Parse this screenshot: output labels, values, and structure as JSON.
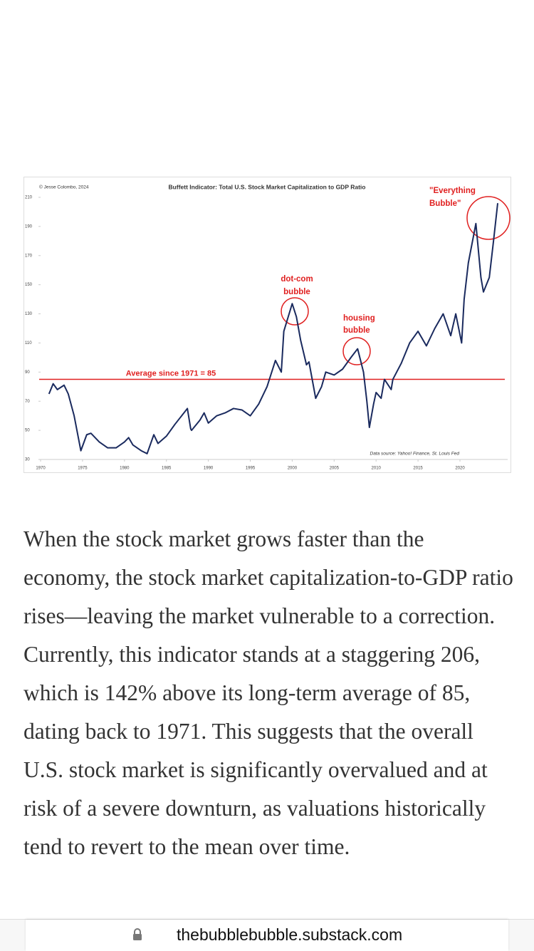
{
  "chart_data": {
    "type": "line",
    "title": "Buffett Indicator: Total U.S. Stock Market Capitalization to GDP Ratio",
    "credit": "© Jesse Colombo, 2024",
    "source": "Data source: Yahoo! Finance, St. Louis Fed",
    "average": {
      "value": 85,
      "label": "Average since 1971 = 85",
      "color": "#e02020"
    },
    "annotations": {
      "dotcom": [
        "dot-com",
        "bubble"
      ],
      "housing": [
        "housing",
        "bubble"
      ],
      "everything": [
        "\"Everything",
        "Bubble\""
      ]
    },
    "xlim": [
      1970,
      2024.8
    ],
    "ylim": [
      30,
      210
    ],
    "xticks": [
      1970,
      1975,
      1980,
      1985,
      1990,
      1995,
      2000,
      2005,
      2010,
      2015,
      2020
    ],
    "yticks": [
      30,
      50,
      70,
      90,
      110,
      130,
      150,
      170,
      190,
      210
    ],
    "series": [
      {
        "color": "#1a2a5e",
        "x": [
          1971,
          1971.5,
          1972,
          1972.8,
          1973.3,
          1974,
          1974.5,
          1974.8,
          1975.5,
          1976,
          1977,
          1978,
          1979,
          1980,
          1980.5,
          1981,
          1982,
          1982.7,
          1983.5,
          1984,
          1985,
          1986,
          1987.5,
          1987.9,
          1988,
          1989,
          1989.5,
          1990,
          1991,
          1992,
          1993,
          1994,
          1995,
          1996,
          1997,
          1998,
          1998.7,
          1999,
          2000,
          2000.5,
          2001,
          2001.7,
          2002,
          2002.8,
          2003.5,
          2004,
          2005,
          2006,
          2007,
          2007.8,
          2008.5,
          2008.9,
          2009.2,
          2009.7,
          2010,
          2010.6,
          2011,
          2011.8,
          2012,
          2013,
          2014,
          2015,
          2016,
          2017,
          2018,
          2018.9,
          2019.5,
          2020.2,
          2020.5,
          2021,
          2021.9,
          2022.5,
          2022.8,
          2023.5,
          2024,
          2024.5
        ],
        "values": [
          75,
          82,
          78,
          81,
          75,
          60,
          45,
          36,
          47,
          48,
          42,
          38,
          38,
          42,
          45,
          40,
          36,
          34,
          47,
          41,
          46,
          54,
          65,
          51,
          50,
          57,
          62,
          55,
          60,
          62,
          65,
          64,
          60,
          68,
          80,
          98,
          90,
          118,
          137,
          128,
          112,
          95,
          97,
          72,
          80,
          90,
          88,
          92,
          100,
          106,
          90,
          70,
          52,
          68,
          76,
          72,
          85,
          78,
          85,
          96,
          110,
          118,
          108,
          120,
          130,
          115,
          130,
          110,
          140,
          165,
          192,
          155,
          145,
          155,
          180,
          206
        ]
      }
    ]
  },
  "article": {
    "paragraph": "When the stock market grows faster than the economy, the stock market capitalization-to-GDP ratio rises—leaving the market vulnerable to a correction. Currently, this indicator stands at a staggering 206, which is 142% above its long-term average of 85, dating back to 1971. This suggests that the overall U.S. stock market is significantly overvalued and at risk of a severe downturn, as valuations historically tend to revert to the mean over time."
  },
  "browser": {
    "url": "thebubblebubble.substack.com"
  }
}
